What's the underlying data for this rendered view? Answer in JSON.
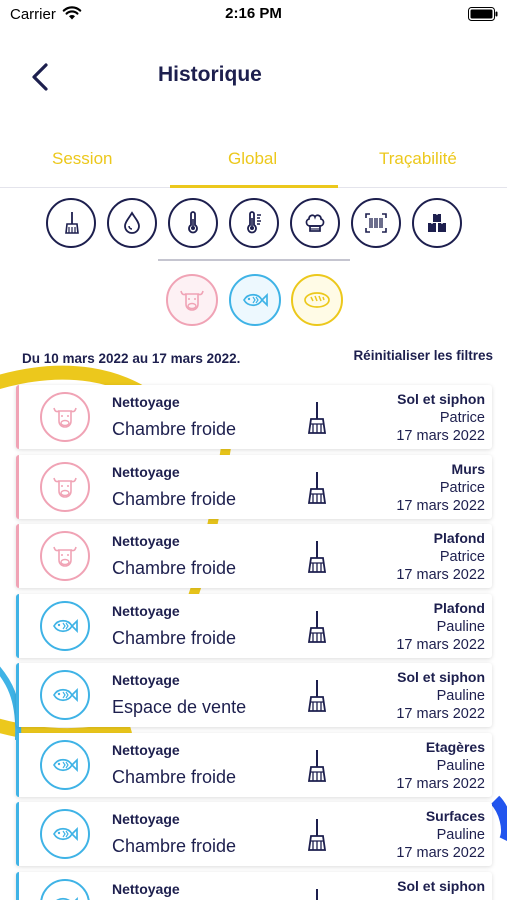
{
  "status_bar": {
    "carrier": "Carrier",
    "time": "2:16 PM"
  },
  "nav": {
    "title": "Historique",
    "back_icon": "chevron-left-icon"
  },
  "tabs": [
    {
      "label": "Session",
      "active": false
    },
    {
      "label": "Global",
      "active": true
    },
    {
      "label": "Traçabilité",
      "active": false
    }
  ],
  "categories": [
    {
      "name": "broom-icon"
    },
    {
      "name": "water-drop-icon"
    },
    {
      "name": "thermometer-icon"
    },
    {
      "name": "thermometer-scale-icon"
    },
    {
      "name": "chef-hat-icon"
    },
    {
      "name": "barcode-scan-icon"
    },
    {
      "name": "boxes-icon"
    }
  ],
  "filters": [
    {
      "name": "meat-filter-icon",
      "color": "#f0a3b5"
    },
    {
      "name": "fish-filter-icon",
      "color": "#3fb3e6"
    },
    {
      "name": "bread-filter-icon",
      "color": "#ecc81c"
    }
  ],
  "date_range": "Du 10 mars 2022 au 17 mars 2022.",
  "reset_label": "Réinitialiser les filtres",
  "colors": {
    "navy": "#1d1f4e",
    "accent_yellow": "#ecc81c",
    "meat_pink": "#f0a3b5",
    "fish_blue": "#3fb3e6"
  },
  "entries": [
    {
      "kind": "meat",
      "type": "Nettoyage",
      "place": "Chambre froide",
      "zone": "Sol et siphon",
      "user": "Patrice",
      "date": "17 mars 2022"
    },
    {
      "kind": "meat",
      "type": "Nettoyage",
      "place": "Chambre froide",
      "zone": "Murs",
      "user": "Patrice",
      "date": "17 mars 2022"
    },
    {
      "kind": "meat",
      "type": "Nettoyage",
      "place": "Chambre froide",
      "zone": "Plafond",
      "user": "Patrice",
      "date": "17 mars 2022"
    },
    {
      "kind": "fish",
      "type": "Nettoyage",
      "place": "Chambre froide",
      "zone": "Plafond",
      "user": "Pauline",
      "date": "17 mars 2022"
    },
    {
      "kind": "fish",
      "type": "Nettoyage",
      "place": "Espace de vente",
      "zone": "Sol et siphon",
      "user": "Pauline",
      "date": "17 mars 2022"
    },
    {
      "kind": "fish",
      "type": "Nettoyage",
      "place": "Chambre froide",
      "zone": "Etagères",
      "user": "Pauline",
      "date": "17 mars 2022"
    },
    {
      "kind": "fish",
      "type": "Nettoyage",
      "place": "Chambre froide",
      "zone": "Surfaces",
      "user": "Pauline",
      "date": "17 mars 2022"
    },
    {
      "kind": "fish",
      "type": "Nettoyage",
      "place": "",
      "zone": "Sol et siphon",
      "user": "",
      "date": ""
    }
  ]
}
